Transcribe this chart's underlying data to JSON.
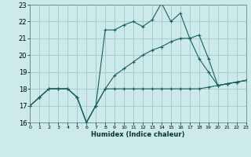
{
  "xlabel": "Humidex (Indice chaleur)",
  "background_color": "#cceaea",
  "grid_color": "#aacccc",
  "line_color": "#1a6060",
  "xlim": [
    0,
    23
  ],
  "ylim": [
    16,
    23
  ],
  "xticks": [
    0,
    1,
    2,
    3,
    4,
    5,
    6,
    7,
    8,
    9,
    10,
    11,
    12,
    13,
    14,
    15,
    16,
    17,
    18,
    19,
    20,
    21,
    22,
    23
  ],
  "yticks": [
    16,
    17,
    18,
    19,
    20,
    21,
    22,
    23
  ],
  "series": [
    [
      17.0,
      17.5,
      18.0,
      18.0,
      18.0,
      17.5,
      16.0,
      17.0,
      18.0,
      18.0,
      18.0,
      18.0,
      18.0,
      18.0,
      18.0,
      18.0,
      18.0,
      18.0,
      18.0,
      18.1,
      18.2,
      18.3,
      18.4,
      18.5
    ],
    [
      17.0,
      17.5,
      18.0,
      18.0,
      18.0,
      17.5,
      16.0,
      17.0,
      18.0,
      18.8,
      19.2,
      19.6,
      20.0,
      20.3,
      20.5,
      20.8,
      21.0,
      21.0,
      19.8,
      19.0,
      18.2,
      18.3,
      18.4,
      18.5
    ],
    [
      17.0,
      17.5,
      18.0,
      18.0,
      18.0,
      17.5,
      16.0,
      17.0,
      21.5,
      21.5,
      21.8,
      22.0,
      21.7,
      22.1,
      23.1,
      22.0,
      22.5,
      21.0,
      21.2,
      19.8,
      18.2,
      18.3,
      18.4,
      18.5
    ]
  ]
}
